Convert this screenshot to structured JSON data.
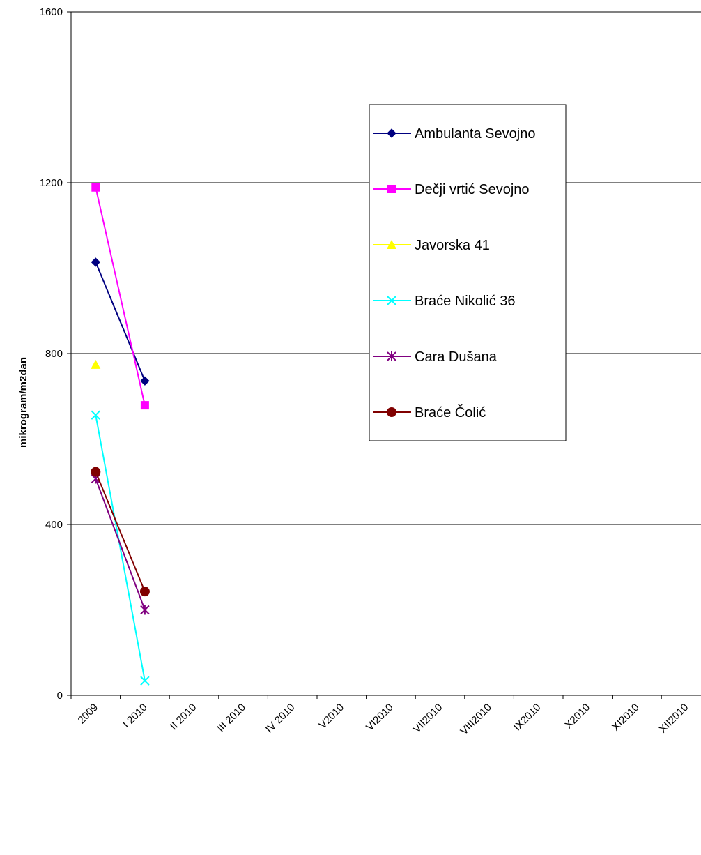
{
  "chart_data": {
    "type": "line",
    "y_label": "mikrogram/m2dan",
    "categories": [
      "2009",
      "I 2010",
      "II 2010",
      "III 2010",
      "IV 2010",
      "V2010",
      "VI2010",
      "VII2010",
      "VIII2010",
      "IX2010",
      "X2010",
      "XI2010",
      "XII2010"
    ],
    "series": [
      {
        "name": "Ambulanta Sevojno",
        "color": "#000080",
        "marker": "diamond",
        "values": [
          1014,
          736,
          null,
          null,
          null,
          null,
          null,
          null,
          null,
          null,
          null,
          null,
          null
        ]
      },
      {
        "name": "Dečji vrtić Sevojno",
        "color": "#ff00ff",
        "marker": "square",
        "values": [
          1189,
          679,
          null,
          null,
          null,
          null,
          null,
          null,
          null,
          null,
          null,
          null,
          null
        ]
      },
      {
        "name": "Javorska 41",
        "color": "#ffff00",
        "marker": "triangle",
        "values": [
          774,
          null,
          null,
          null,
          null,
          null,
          null,
          null,
          null,
          null,
          null,
          null,
          null
        ]
      },
      {
        "name": "Braće Nikolić 36",
        "color": "#00ffff",
        "marker": "x",
        "values": [
          656,
          34,
          null,
          null,
          null,
          null,
          null,
          null,
          null,
          null,
          null,
          null,
          null
        ]
      },
      {
        "name": "Cara Dušana",
        "color": "#800080",
        "marker": "asterisk",
        "values": [
          507,
          200,
          null,
          null,
          null,
          null,
          null,
          null,
          null,
          null,
          null,
          null,
          null
        ]
      },
      {
        "name": "Braće Čolić",
        "color": "#800000",
        "marker": "circle",
        "values": [
          523,
          243,
          null,
          null,
          null,
          null,
          null,
          null,
          null,
          null,
          null,
          null,
          null
        ]
      }
    ],
    "ylim": [
      0,
      1600
    ],
    "yticks": [
      0,
      400,
      800,
      1200,
      1600
    ],
    "grid": true,
    "legend": "right"
  }
}
